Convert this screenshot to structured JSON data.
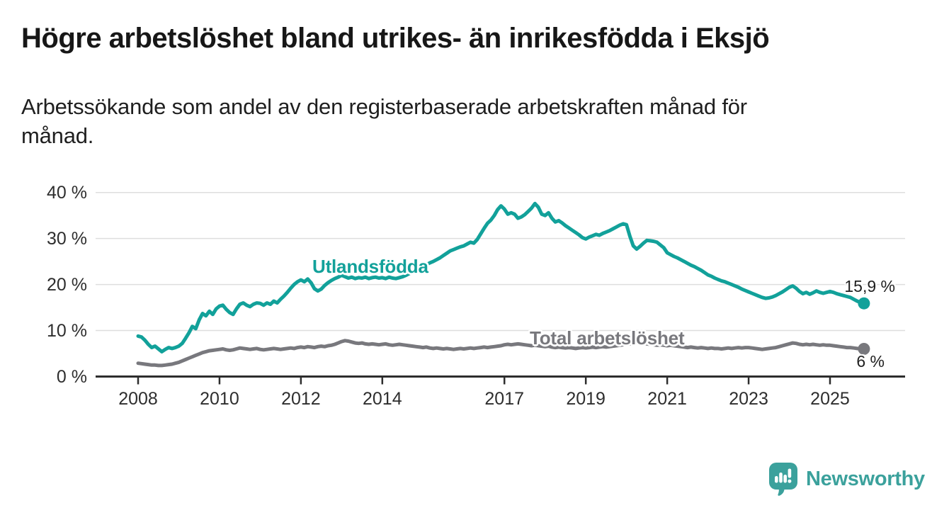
{
  "header": {
    "title": "Högre arbetslöshet bland utrikes- än inrikesfödda i Eksjö",
    "subtitle": "Arbetssökande som andel av den registerbaserade arbetskraften månad för\nmånad."
  },
  "footer": {
    "brand": "Newsworthy",
    "logo_icon": "speech-bubble-bar-chart-icon"
  },
  "colors": {
    "series_utlandsfodda": "#12a19a",
    "series_total": "#78787d",
    "axis": "#2d2d2d",
    "grid": "#dedede",
    "tick_text": "#2e2e2e",
    "brand_teal": "#3ba19c"
  },
  "chart_data": {
    "type": "line",
    "unit": "%",
    "frequency": "monthly",
    "x_start": "2008-01",
    "x_end": "2025-11",
    "ylim": [
      0,
      42
    ],
    "grid": "horizontal",
    "legend_position": "inline-labels",
    "y_ticks": [
      0,
      10,
      20,
      30,
      40
    ],
    "y_tick_labels": [
      "0 %",
      "10 %",
      "20 %",
      "30 %",
      "40 %"
    ],
    "x_tick_years": [
      2008,
      2010,
      2012,
      2014,
      2017,
      2019,
      2021,
      2023,
      2025
    ],
    "series": [
      {
        "name": "Utlandsfödda",
        "color": "#12a19a",
        "end_value": 15.9,
        "end_label": "15,9 %",
        "values": [
          8.8,
          8.6,
          7.9,
          7.0,
          6.3,
          6.6,
          6.0,
          5.4,
          5.9,
          6.3,
          6.1,
          6.3,
          6.6,
          7.2,
          8.3,
          9.5,
          10.9,
          10.4,
          12.3,
          13.7,
          13.2,
          14.2,
          13.5,
          14.7,
          15.3,
          15.5,
          14.6,
          13.9,
          13.5,
          14.7,
          15.7,
          16.0,
          15.5,
          15.2,
          15.7,
          16.0,
          15.9,
          15.5,
          16.0,
          15.7,
          16.4,
          16.0,
          16.8,
          17.5,
          18.3,
          19.2,
          20.0,
          20.6,
          21.0,
          20.6,
          21.2,
          20.4,
          19.1,
          18.6,
          19.0,
          19.8,
          20.4,
          20.9,
          21.3,
          21.6,
          22.0,
          21.7,
          21.4,
          21.6,
          21.3,
          21.5,
          21.4,
          21.6,
          21.3,
          21.5,
          21.6,
          21.4,
          21.5,
          21.3,
          21.6,
          21.4,
          21.3,
          21.5,
          21.7,
          22.0,
          22.4,
          22.8,
          23.2,
          23.6,
          24.0,
          24.3,
          24.7,
          25.0,
          25.4,
          25.8,
          26.3,
          26.8,
          27.3,
          27.6,
          27.9,
          28.2,
          28.4,
          28.8,
          29.2,
          29.0,
          29.8,
          31.0,
          32.2,
          33.3,
          34.0,
          35.0,
          36.3,
          37.1,
          36.4,
          35.3,
          35.6,
          35.3,
          34.4,
          34.7,
          35.2,
          35.9,
          36.6,
          37.6,
          36.8,
          35.3,
          35.0,
          35.6,
          34.4,
          33.6,
          33.9,
          33.4,
          32.8,
          32.3,
          31.8,
          31.3,
          30.8,
          30.2,
          29.9,
          30.3,
          30.6,
          30.9,
          30.7,
          31.1,
          31.4,
          31.7,
          32.1,
          32.5,
          32.9,
          33.2,
          33.0,
          30.5,
          28.4,
          27.7,
          28.3,
          29.0,
          29.6,
          29.5,
          29.4,
          29.2,
          28.6,
          28.0,
          26.9,
          26.5,
          26.1,
          25.8,
          25.4,
          25.0,
          24.6,
          24.2,
          23.9,
          23.5,
          23.1,
          22.6,
          22.1,
          21.8,
          21.4,
          21.1,
          20.8,
          20.6,
          20.3,
          20.0,
          19.7,
          19.4,
          19.0,
          18.7,
          18.4,
          18.1,
          17.8,
          17.5,
          17.2,
          17.0,
          17.1,
          17.3,
          17.6,
          18.0,
          18.4,
          18.9,
          19.4,
          19.7,
          19.2,
          18.5,
          18.0,
          18.3,
          17.9,
          18.2,
          18.6,
          18.3,
          18.1,
          18.3,
          18.5,
          18.3,
          18.0,
          17.8,
          17.6,
          17.4,
          17.2,
          16.8,
          16.4,
          16.1,
          15.9
        ]
      },
      {
        "name": "Total arbetslöshet",
        "color": "#78787d",
        "end_value": 6.0,
        "end_label": "6 %",
        "values": [
          2.9,
          2.8,
          2.7,
          2.6,
          2.5,
          2.5,
          2.4,
          2.4,
          2.5,
          2.6,
          2.7,
          2.9,
          3.1,
          3.4,
          3.7,
          4.0,
          4.3,
          4.6,
          4.9,
          5.2,
          5.4,
          5.6,
          5.7,
          5.8,
          5.9,
          6.0,
          5.8,
          5.7,
          5.8,
          6.0,
          6.2,
          6.1,
          6.0,
          5.9,
          6.0,
          6.1,
          5.9,
          5.8,
          5.9,
          6.0,
          6.1,
          6.0,
          5.9,
          6.0,
          6.1,
          6.2,
          6.1,
          6.3,
          6.4,
          6.3,
          6.5,
          6.4,
          6.3,
          6.5,
          6.6,
          6.5,
          6.7,
          6.8,
          7.0,
          7.3,
          7.6,
          7.8,
          7.7,
          7.5,
          7.3,
          7.2,
          7.3,
          7.1,
          7.0,
          7.1,
          7.0,
          6.9,
          7.0,
          7.1,
          6.9,
          6.8,
          6.9,
          7.0,
          6.9,
          6.8,
          6.7,
          6.6,
          6.5,
          6.4,
          6.3,
          6.4,
          6.2,
          6.1,
          6.2,
          6.1,
          6.0,
          6.1,
          6.0,
          5.9,
          6.0,
          6.1,
          6.0,
          6.1,
          6.2,
          6.1,
          6.2,
          6.3,
          6.4,
          6.3,
          6.4,
          6.5,
          6.6,
          6.7,
          6.9,
          7.0,
          6.9,
          7.0,
          7.1,
          7.0,
          6.9,
          6.8,
          6.7,
          6.8,
          6.7,
          6.6,
          6.5,
          6.6,
          6.4,
          6.3,
          6.4,
          6.3,
          6.2,
          6.3,
          6.2,
          6.1,
          6.2,
          6.3,
          6.2,
          6.3,
          6.4,
          6.3,
          6.4,
          6.5,
          6.4,
          6.5,
          6.6,
          6.7,
          6.8,
          6.9,
          7.0,
          7.1,
          7.3,
          7.4,
          7.3,
          7.2,
          7.1,
          7.0,
          6.9,
          6.8,
          6.9,
          6.8,
          6.7,
          6.8,
          6.7,
          6.6,
          6.5,
          6.4,
          6.3,
          6.4,
          6.3,
          6.2,
          6.3,
          6.2,
          6.1,
          6.2,
          6.1,
          6.1,
          6.0,
          6.1,
          6.2,
          6.1,
          6.2,
          6.3,
          6.2,
          6.3,
          6.3,
          6.2,
          6.1,
          6.0,
          5.9,
          6.0,
          6.1,
          6.2,
          6.3,
          6.5,
          6.7,
          6.9,
          7.1,
          7.3,
          7.2,
          7.0,
          6.9,
          7.0,
          6.9,
          7.0,
          6.9,
          6.8,
          6.9,
          6.8,
          6.8,
          6.7,
          6.6,
          6.5,
          6.4,
          6.3,
          6.3,
          6.2,
          6.1,
          6.0,
          6.0
        ]
      }
    ]
  }
}
